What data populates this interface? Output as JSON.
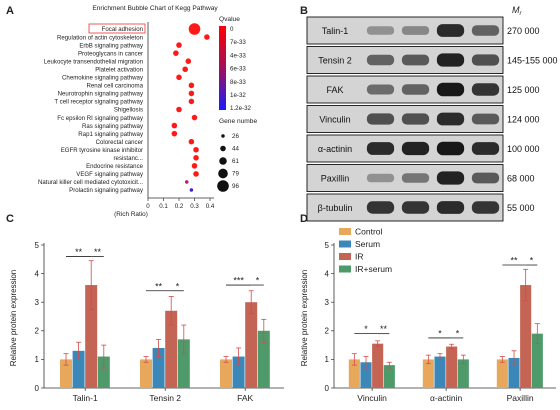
{
  "panels": {
    "a": {
      "letter": "A"
    },
    "b": {
      "letter": "B"
    },
    "c": {
      "letter": "C"
    },
    "d": {
      "letter": "D"
    }
  },
  "bubble": {
    "title": "Enrichment Bubble Chart of Kegg Pathway",
    "pathways": [
      {
        "name": "Focal adhesion",
        "ratio": 0.3,
        "size": 96,
        "color": "#ff1a1a",
        "highlight": true
      },
      {
        "name": "Regulation of actin cytoskeleton",
        "ratio": 0.38,
        "size": 44,
        "color": "#ff1a1a"
      },
      {
        "name": "ErbB signaling pathway",
        "ratio": 0.2,
        "size": 44,
        "color": "#ff1a1a"
      },
      {
        "name": "Proteoglycans in cancer",
        "ratio": 0.18,
        "size": 44,
        "color": "#ff1a1a"
      },
      {
        "name": "Leukocyte transendothelial migration",
        "ratio": 0.26,
        "size": 44,
        "color": "#ff1a1a"
      },
      {
        "name": "Platelet activation",
        "ratio": 0.24,
        "size": 44,
        "color": "#ff1a1a"
      },
      {
        "name": "Chemokine signaling pathway",
        "ratio": 0.2,
        "size": 44,
        "color": "#ff1a1a"
      },
      {
        "name": "Renal cell carcinoma",
        "ratio": 0.28,
        "size": 44,
        "color": "#ff1a1a"
      },
      {
        "name": "Neurotrophin signaling pathway",
        "ratio": 0.28,
        "size": 44,
        "color": "#ff1a1a"
      },
      {
        "name": "T cell receptor signaling pathway",
        "ratio": 0.28,
        "size": 44,
        "color": "#ff1a1a"
      },
      {
        "name": "Shigellosis",
        "ratio": 0.2,
        "size": 44,
        "color": "#ff1a1a"
      },
      {
        "name": "Fc epsilon RI signaling pathway",
        "ratio": 0.3,
        "size": 44,
        "color": "#ff1a1a"
      },
      {
        "name": "Ras signaling pathway",
        "ratio": 0.17,
        "size": 44,
        "color": "#ff1a1a"
      },
      {
        "name": "Rap1 signaling pathway",
        "ratio": 0.17,
        "size": 44,
        "color": "#ff1a1a"
      },
      {
        "name": "Colorectal cancer",
        "ratio": 0.28,
        "size": 44,
        "color": "#ff1a1a"
      },
      {
        "name": "EGFR tyrosine kinase inhibitor",
        "ratio": 0.31,
        "size": 44,
        "color": "#ff1a1a"
      },
      {
        "name": "resistanc...",
        "ratio": 0.31,
        "size": 44,
        "color": "#ff1a1a"
      },
      {
        "name": "Endocrine resistance",
        "ratio": 0.3,
        "size": 44,
        "color": "#ff1a1a"
      },
      {
        "name": "VEGF signaling pathway",
        "ratio": 0.31,
        "size": 44,
        "color": "#ff1a1a"
      },
      {
        "name": "Natural killer cell mediated cytotoxicit...",
        "ratio": 0.25,
        "size": 26,
        "color": "#c0146a"
      },
      {
        "name": "Prolactin signaling pathway",
        "ratio": 0.28,
        "size": 26,
        "color": "#3a20d0"
      }
    ],
    "x_ticks": [
      {
        "value": 0,
        "label": "0"
      },
      {
        "value": 0.1,
        "label": "0.1"
      },
      {
        "value": 0.2,
        "label": "0.2"
      },
      {
        "value": 0.3,
        "label": "0.3"
      },
      {
        "value": 0.4,
        "label": "0.4"
      }
    ],
    "xlabel": "(Rich Ratio)",
    "qvalue_title": "Qvalue",
    "qvalue_labels": [
      "0",
      "7e-33",
      "4e-33",
      "6e-33",
      "8e-33",
      "1e-32",
      "1.2e-32"
    ],
    "gene_title": "Gene numbe",
    "gene_sizes": [
      {
        "value": 26,
        "label": "26"
      },
      {
        "value": 44,
        "label": "44"
      },
      {
        "value": 61,
        "label": "61"
      },
      {
        "value": 79,
        "label": "79"
      },
      {
        "value": 96,
        "label": "96"
      }
    ]
  },
  "blot": {
    "mr_label": "M",
    "mr_sub": "r",
    "rows": [
      {
        "protein": "Talin-1",
        "mw": "270 000"
      },
      {
        "protein": "Tensin 2",
        "mw": "145-155 000"
      },
      {
        "protein": "FAK",
        "mw": "125 000"
      },
      {
        "protein": "Vinculin",
        "mw": "124 000"
      },
      {
        "protein": "α-actinin",
        "mw": "100 000"
      },
      {
        "protein": "Paxillin",
        "mw": "68 000"
      },
      {
        "protein": "β-tubulin",
        "mw": "55 000"
      }
    ],
    "intensities": [
      [
        0.3,
        0.35,
        0.85,
        0.55
      ],
      [
        0.55,
        0.6,
        0.9,
        0.65
      ],
      [
        0.5,
        0.55,
        0.95,
        0.8
      ],
      [
        0.65,
        0.65,
        0.85,
        0.6
      ],
      [
        0.85,
        0.9,
        0.95,
        0.85
      ],
      [
        0.3,
        0.45,
        0.9,
        0.6
      ],
      [
        0.8,
        0.8,
        0.85,
        0.8
      ]
    ]
  },
  "colors": {
    "control": "#e8a85c",
    "serum": "#3b88b8",
    "ir": "#c46454",
    "irserum": "#4e9a6a",
    "error": "#d44a4a"
  },
  "legend": [
    "Control",
    "Serum",
    "IR",
    "IR+serum"
  ],
  "chart_data": [
    {
      "type": "bar",
      "panel": "C",
      "categories": [
        "Talin-1",
        "Tensin 2",
        "FAK"
      ],
      "ylabel": "Relative protein expression",
      "ylim": [
        0,
        5
      ],
      "y_ticks": [
        0,
        1,
        2,
        3,
        4,
        5
      ],
      "series": [
        {
          "name": "Control",
          "values": [
            1.0,
            1.0,
            1.0
          ],
          "errors": [
            0.2,
            0.1,
            0.1
          ]
        },
        {
          "name": "Serum",
          "values": [
            1.3,
            1.4,
            1.1
          ],
          "errors": [
            0.3,
            0.3,
            0.3
          ]
        },
        {
          "name": "IR",
          "values": [
            3.6,
            2.7,
            3.0
          ],
          "errors": [
            0.85,
            0.5,
            0.4
          ]
        },
        {
          "name": "IR+serum",
          "values": [
            1.1,
            1.7,
            2.0
          ],
          "errors": [
            0.4,
            0.5,
            0.4
          ]
        }
      ],
      "brackets": [
        {
          "category": 0,
          "from": 0,
          "to": 2,
          "label": "**",
          "y": 4.6
        },
        {
          "category": 0,
          "from": 2,
          "to": 3,
          "label": "**",
          "y": 4.6
        },
        {
          "category": 1,
          "from": 0,
          "to": 2,
          "label": "**",
          "y": 3.4
        },
        {
          "category": 1,
          "from": 2,
          "to": 3,
          "label": "*",
          "y": 3.4
        },
        {
          "category": 2,
          "from": 0,
          "to": 2,
          "label": "***",
          "y": 3.6
        },
        {
          "category": 2,
          "from": 2,
          "to": 3,
          "label": "*",
          "y": 3.6
        }
      ]
    },
    {
      "type": "bar",
      "panel": "D",
      "categories": [
        "Vinculin",
        "α-actinin",
        "Paxillin"
      ],
      "ylabel": "Relative protein expression",
      "ylim": [
        0,
        5
      ],
      "y_ticks": [
        0,
        1,
        2,
        3,
        4,
        5
      ],
      "series": [
        {
          "name": "Control",
          "values": [
            1.0,
            1.0,
            1.0
          ],
          "errors": [
            0.2,
            0.15,
            0.1
          ]
        },
        {
          "name": "Serum",
          "values": [
            0.9,
            1.1,
            1.05
          ],
          "errors": [
            0.2,
            0.1,
            0.25
          ]
        },
        {
          "name": "IR",
          "values": [
            1.55,
            1.45,
            3.6
          ],
          "errors": [
            0.1,
            0.08,
            0.55
          ]
        },
        {
          "name": "IR+serum",
          "values": [
            0.8,
            1.0,
            1.9
          ],
          "errors": [
            0.1,
            0.15,
            0.35
          ]
        }
      ],
      "brackets": [
        {
          "category": 0,
          "from": 0,
          "to": 2,
          "label": "*",
          "y": 1.9
        },
        {
          "category": 0,
          "from": 2,
          "to": 3,
          "label": "**",
          "y": 1.9
        },
        {
          "category": 1,
          "from": 0,
          "to": 2,
          "label": "*",
          "y": 1.75
        },
        {
          "category": 1,
          "from": 2,
          "to": 3,
          "label": "*",
          "y": 1.75
        },
        {
          "category": 2,
          "from": 0,
          "to": 2,
          "label": "**",
          "y": 4.3
        },
        {
          "category": 2,
          "from": 2,
          "to": 3,
          "label": "*",
          "y": 4.3
        }
      ]
    }
  ]
}
